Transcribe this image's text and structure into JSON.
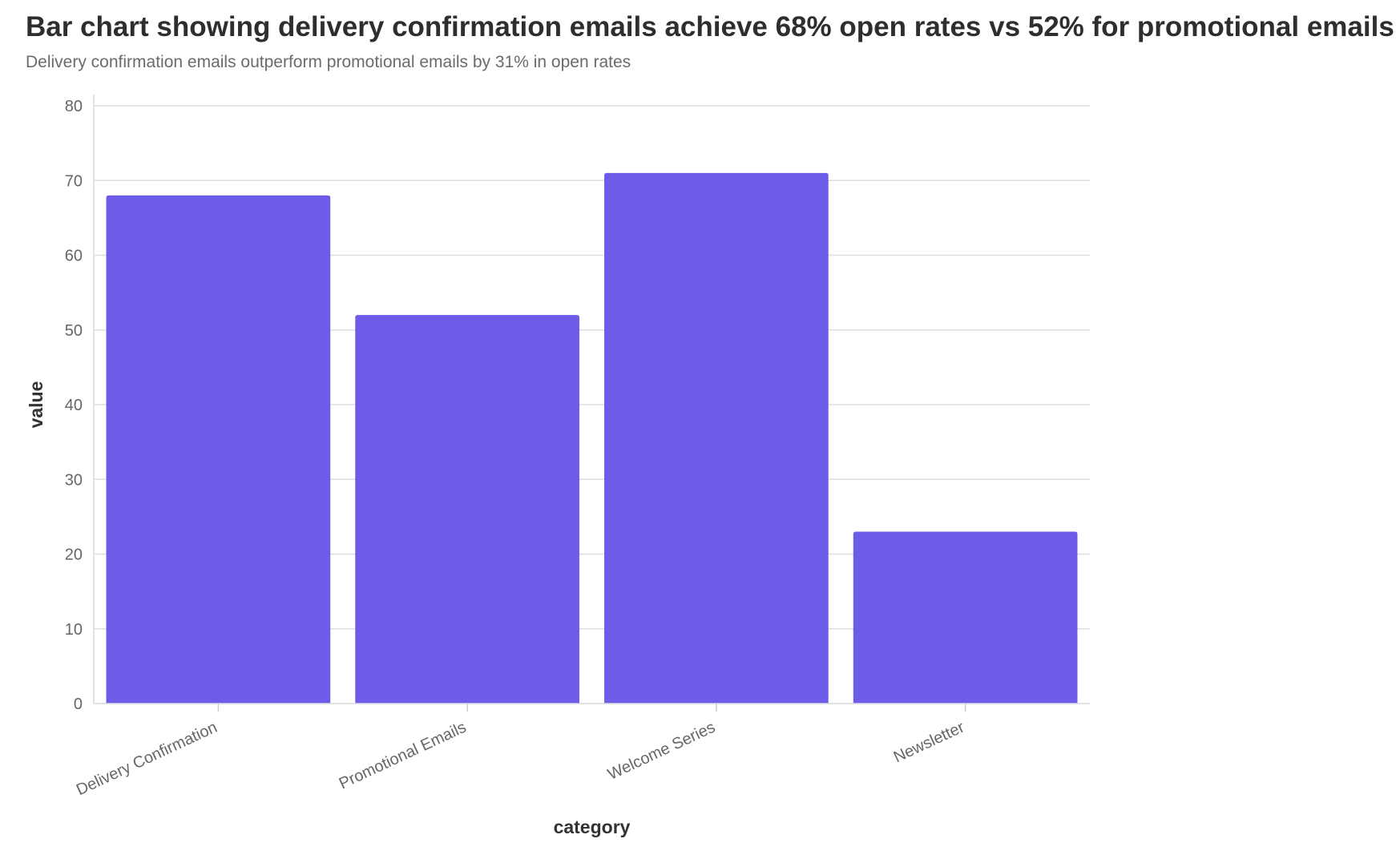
{
  "chart_data": {
    "type": "bar",
    "title": "Bar chart showing delivery confirmation emails achieve 68% open rates vs 52% for promotional emails",
    "subtitle": "Delivery confirmation emails outperform promotional emails by 31% in open rates",
    "xlabel": "category",
    "ylabel": "value",
    "categories": [
      "Delivery Confirmation",
      "Promotional Emails",
      "Welcome Series",
      "Newsletter"
    ],
    "values": [
      68,
      52,
      71,
      23
    ],
    "ylim": [
      0,
      80
    ],
    "yticks": [
      0,
      10,
      20,
      30,
      40,
      50,
      60,
      70,
      80
    ],
    "grid": true,
    "legend": "none",
    "bar_color": "#6c5ce7"
  }
}
